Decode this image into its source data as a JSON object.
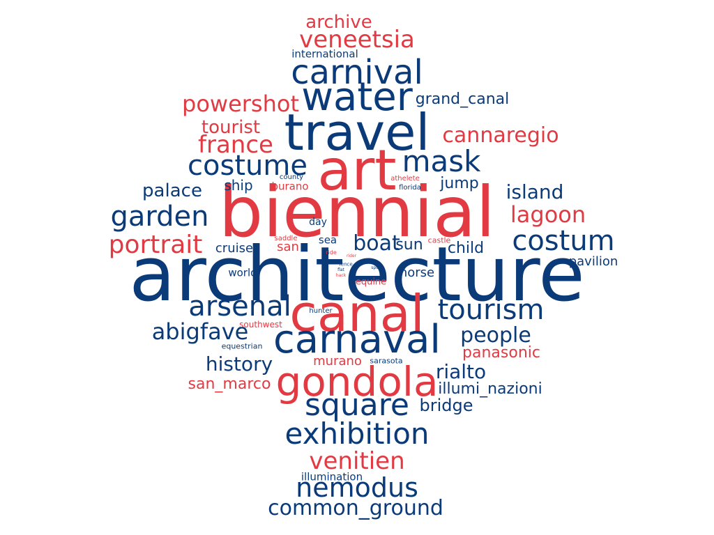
{
  "palette": {
    "navy": "#0b3a78",
    "red": "#e23a42"
  },
  "words": [
    {
      "text": "architecture",
      "color": "navy"
    },
    {
      "text": "biennial",
      "color": "red"
    },
    {
      "text": "travel",
      "color": "navy"
    },
    {
      "text": "art",
      "color": "red"
    },
    {
      "text": "canal",
      "color": "red"
    },
    {
      "text": "carnaval",
      "color": "navy"
    },
    {
      "text": "water",
      "color": "navy"
    },
    {
      "text": "gondola",
      "color": "red"
    },
    {
      "text": "carnival",
      "color": "navy"
    },
    {
      "text": "square",
      "color": "navy"
    },
    {
      "text": "costume",
      "color": "navy"
    },
    {
      "text": "exhibition",
      "color": "navy"
    },
    {
      "text": "mask",
      "color": "navy"
    },
    {
      "text": "arsenal",
      "color": "navy"
    },
    {
      "text": "tourism",
      "color": "navy"
    },
    {
      "text": "costum",
      "color": "navy"
    },
    {
      "text": "nemodus",
      "color": "navy"
    },
    {
      "text": "garden",
      "color": "navy"
    },
    {
      "text": "portrait",
      "color": "red"
    },
    {
      "text": "veneetsia",
      "color": "red"
    },
    {
      "text": "venitien",
      "color": "red"
    },
    {
      "text": "abigfave",
      "color": "navy"
    },
    {
      "text": "boat",
      "color": "navy"
    },
    {
      "text": "common_ground",
      "color": "navy"
    },
    {
      "text": "lagoon",
      "color": "red"
    },
    {
      "text": "people",
      "color": "navy"
    },
    {
      "text": "france",
      "color": "red"
    },
    {
      "text": "powershot",
      "color": "red"
    },
    {
      "text": "cannaregio",
      "color": "red"
    },
    {
      "text": "history",
      "color": "navy"
    },
    {
      "text": "rialto",
      "color": "navy"
    },
    {
      "text": "island",
      "color": "navy"
    },
    {
      "text": "archive",
      "color": "red"
    },
    {
      "text": "palace",
      "color": "navy"
    },
    {
      "text": "tourist",
      "color": "red"
    },
    {
      "text": "grand_canal",
      "color": "navy"
    },
    {
      "text": "san_marco",
      "color": "red"
    },
    {
      "text": "panasonic",
      "color": "red"
    },
    {
      "text": "illumi_nazioni",
      "color": "navy"
    },
    {
      "text": "bridge",
      "color": "navy"
    },
    {
      "text": "sun",
      "color": "navy"
    },
    {
      "text": "child",
      "color": "navy"
    },
    {
      "text": "jump",
      "color": "navy"
    },
    {
      "text": "pavilion",
      "color": "navy"
    },
    {
      "text": "ship",
      "color": "navy"
    },
    {
      "text": "cruise",
      "color": "navy"
    },
    {
      "text": "murano",
      "color": "red"
    },
    {
      "text": "horse",
      "color": "navy"
    },
    {
      "text": "international",
      "color": "navy"
    },
    {
      "text": "illumination",
      "color": "navy"
    },
    {
      "text": "san",
      "color": "red"
    },
    {
      "text": "burano",
      "color": "red"
    },
    {
      "text": "sea",
      "color": "navy"
    },
    {
      "text": "day",
      "color": "navy"
    },
    {
      "text": "world",
      "color": "navy"
    },
    {
      "text": "equine",
      "color": "red"
    },
    {
      "text": "southwest",
      "color": "red"
    },
    {
      "text": "equestrian",
      "color": "navy"
    },
    {
      "text": "sarasota",
      "color": "navy"
    },
    {
      "text": "hunter",
      "color": "navy"
    },
    {
      "text": "castle",
      "color": "red"
    },
    {
      "text": "athelete",
      "color": "red"
    },
    {
      "text": "florida",
      "color": "navy"
    },
    {
      "text": "county",
      "color": "navy"
    },
    {
      "text": "saddle",
      "color": "red"
    },
    {
      "text": "ride",
      "color": "red"
    },
    {
      "text": "fence",
      "color": "navy"
    },
    {
      "text": "sport",
      "color": "navy"
    },
    {
      "text": "flat",
      "color": "navy"
    },
    {
      "text": "rider",
      "color": "red"
    },
    {
      "text": "hack",
      "color": "red"
    }
  ]
}
